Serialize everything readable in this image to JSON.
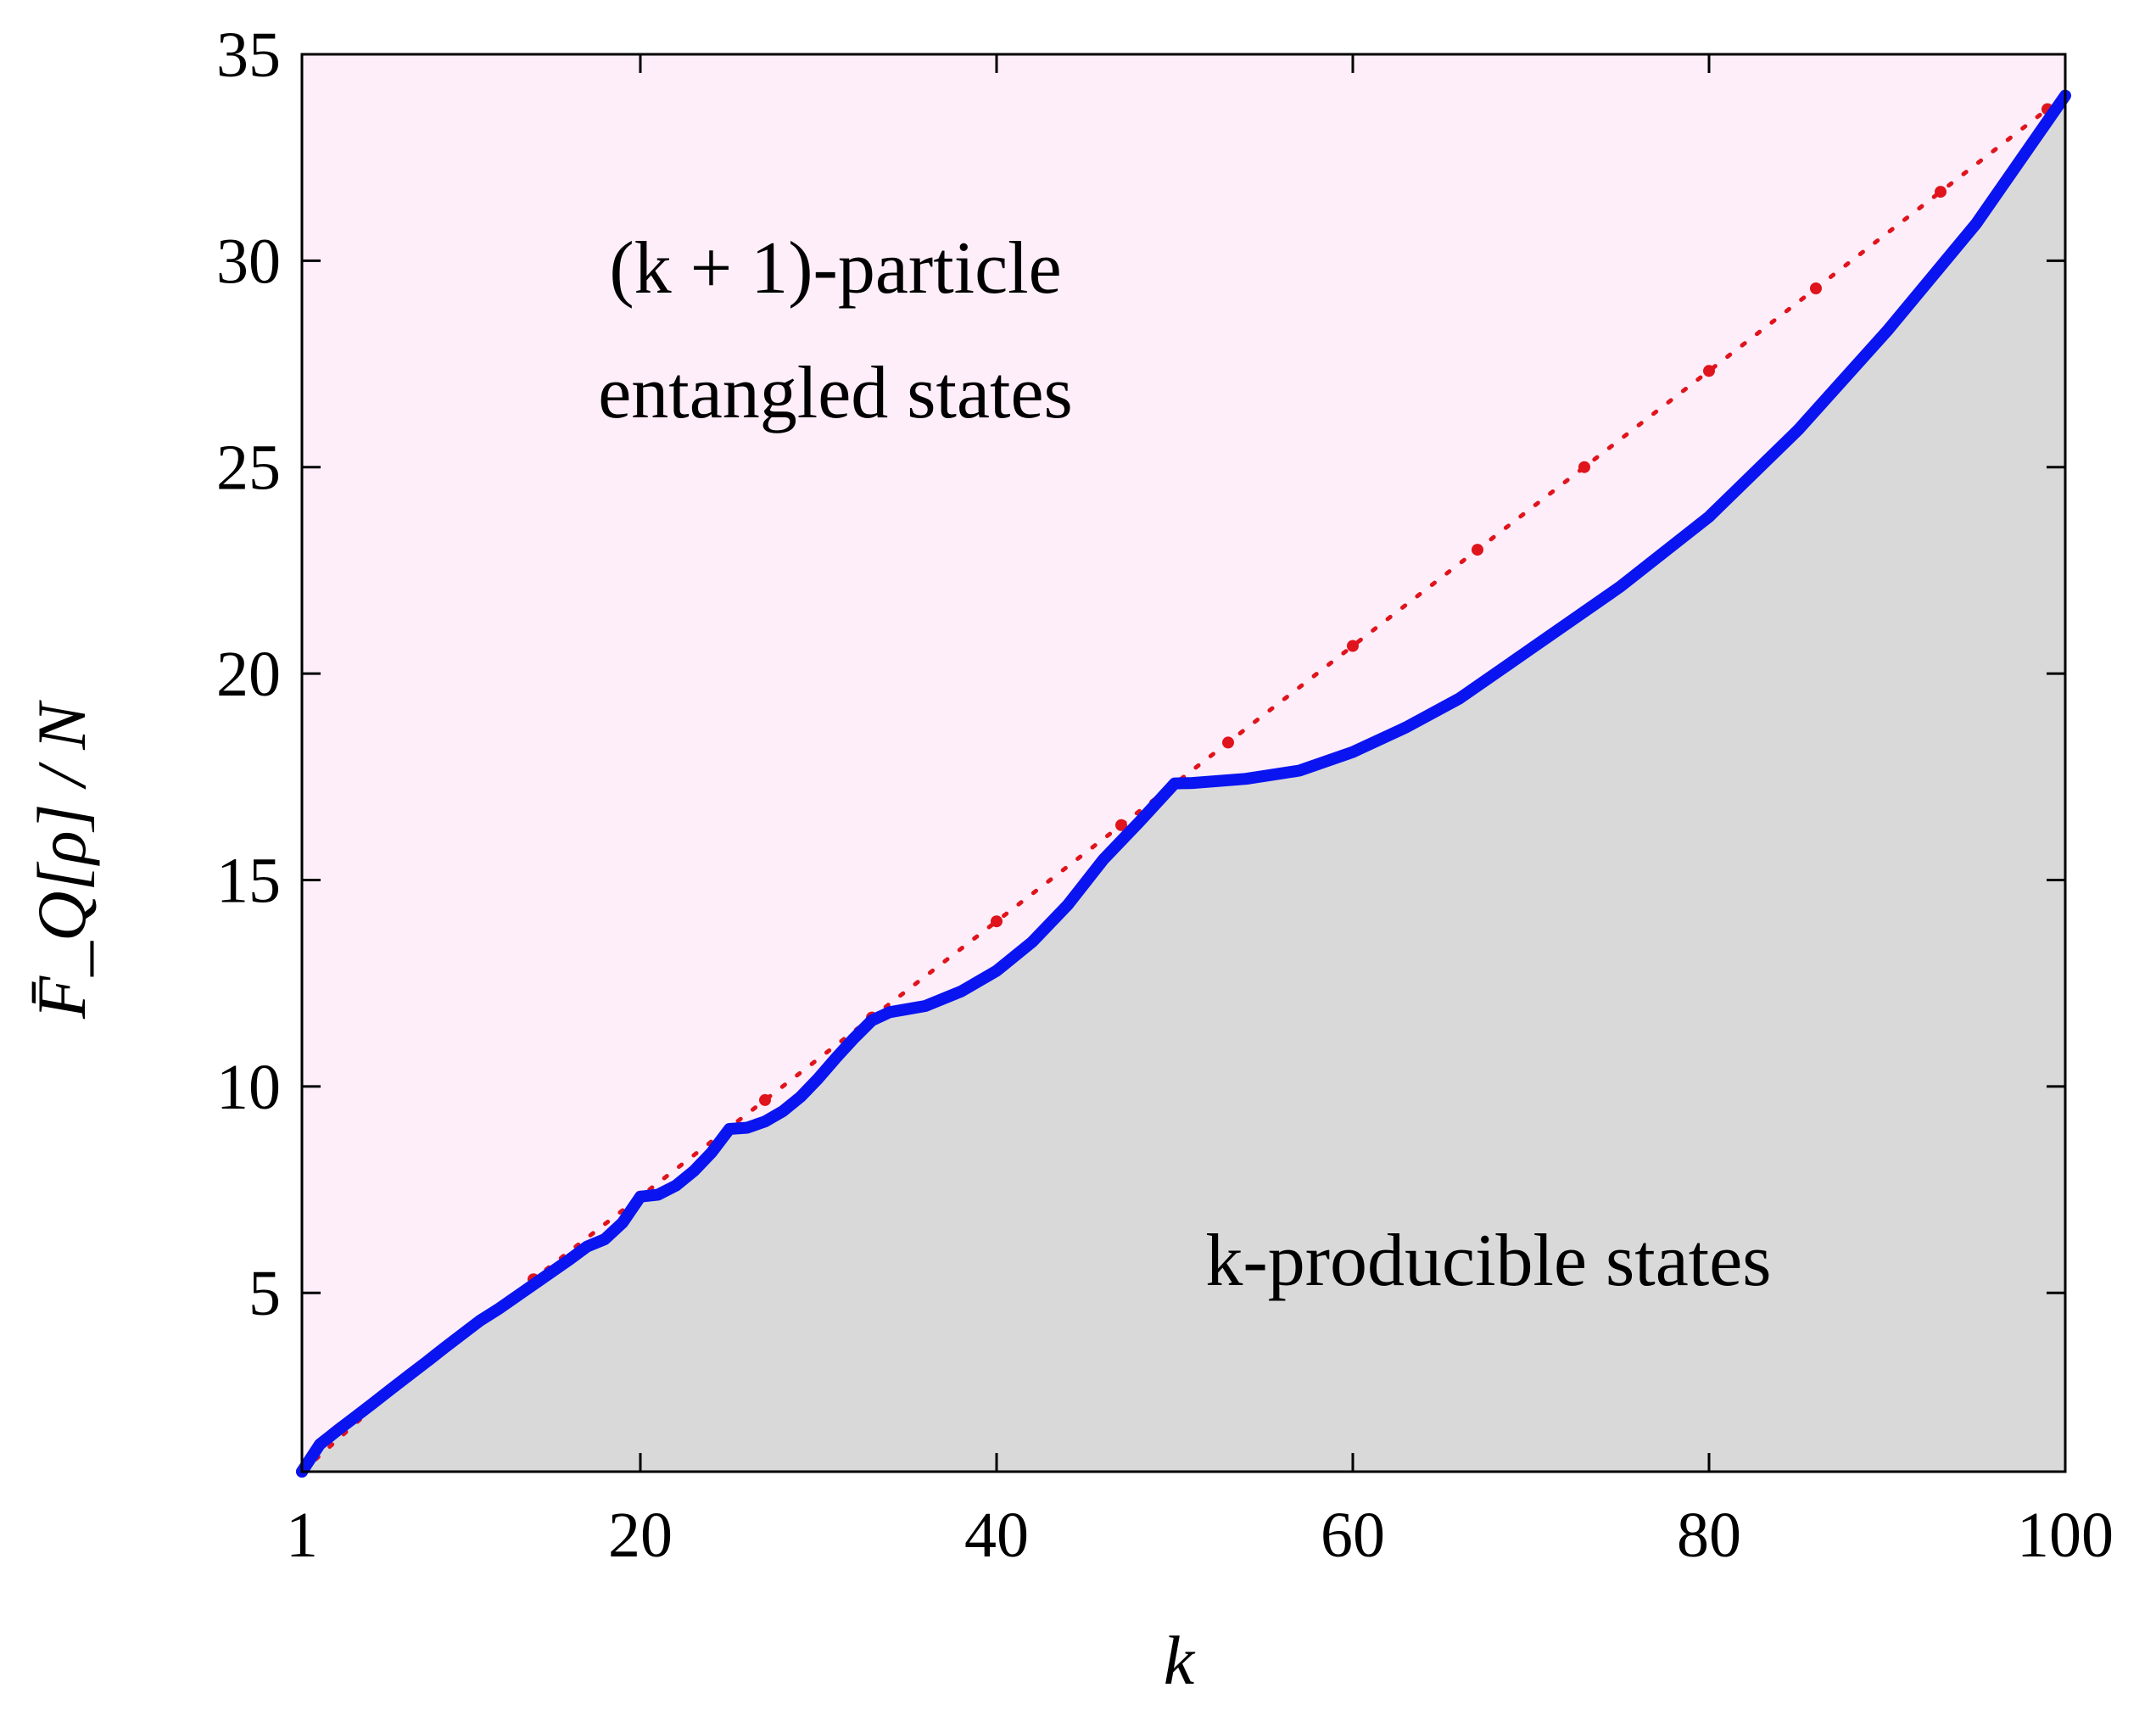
{
  "chart_data": {
    "type": "area",
    "xlabel": "k",
    "ylabel": "F̄_Q[ρ] / N",
    "xlim": [
      1,
      100
    ],
    "ylim": [
      0.67,
      35
    ],
    "xticks": [
      1,
      20,
      40,
      60,
      80,
      100
    ],
    "yticks": [
      5,
      10,
      15,
      20,
      25,
      30,
      35
    ],
    "grid": false,
    "annotations": {
      "upper_line1": "(k + 1)-particle",
      "upper_line2": "entangled states",
      "lower": "k-producible states"
    },
    "colors": {
      "upper_region": "#fdeef9",
      "lower_region": "#d9d9d9",
      "bound_line": "#0a14f0",
      "dotted_line": "#e0141c"
    },
    "series": [
      {
        "style": "solid",
        "x": [
          1,
          2,
          3,
          4,
          5,
          6,
          7,
          8,
          9,
          10,
          11,
          12,
          13,
          14,
          15,
          16,
          17,
          18,
          19,
          20,
          21,
          22,
          23,
          24,
          25,
          26,
          27,
          28,
          29,
          30,
          31,
          32,
          33,
          34,
          36,
          38,
          40,
          42,
          44,
          46,
          48,
          50,
          51,
          54,
          57,
          60,
          63,
          66,
          70,
          75,
          80,
          85,
          90,
          95,
          100
        ],
        "y": [
          0.67,
          1.33,
          1.67,
          2.0,
          2.33,
          2.67,
          3.0,
          3.33,
          3.67,
          4.0,
          4.33,
          4.6,
          4.9,
          5.2,
          5.5,
          5.8,
          6.12,
          6.3,
          6.7,
          7.33,
          7.38,
          7.6,
          7.95,
          8.4,
          8.97,
          9.0,
          9.15,
          9.4,
          9.75,
          10.2,
          10.7,
          11.17,
          11.6,
          11.8,
          11.95,
          12.3,
          12.8,
          13.5,
          14.4,
          15.5,
          16.4,
          17.34,
          17.35,
          17.45,
          17.65,
          18.1,
          18.7,
          19.4,
          20.6,
          22.1,
          23.8,
          25.9,
          28.3,
          30.9,
          34.0
        ]
      },
      {
        "style": "dotted",
        "x": [
          1,
          7,
          14,
          20,
          27,
          33,
          40,
          47,
          53,
          60,
          67,
          73,
          80,
          86,
          93,
          99
        ],
        "y": [
          0.67,
          3.0,
          5.33,
          7.33,
          9.67,
          11.67,
          14.0,
          16.33,
          18.33,
          20.67,
          23.0,
          25.0,
          27.33,
          29.33,
          31.67,
          33.67
        ]
      }
    ]
  }
}
